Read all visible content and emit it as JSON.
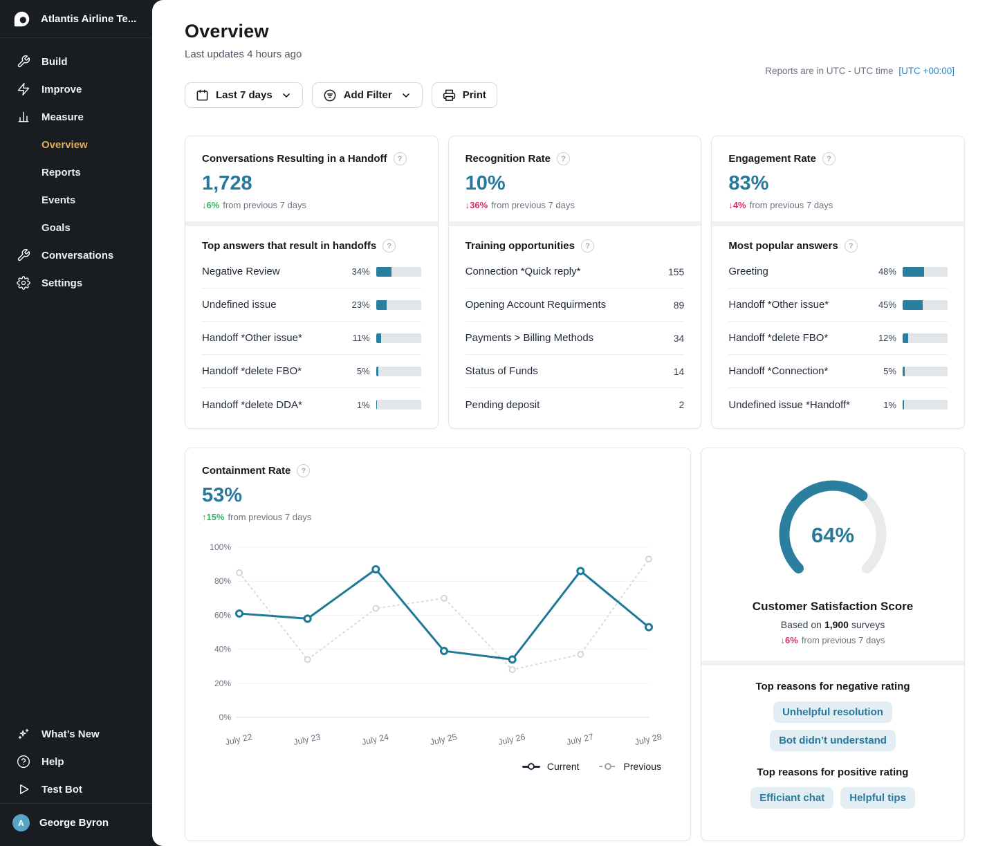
{
  "colors": {
    "accent": "#27789b",
    "bar_fill": "#2b7f9e",
    "positive": "#2fb15f",
    "negative": "#d5305f",
    "active_nav": "#dfae55",
    "link": "#2e86c1"
  },
  "sidebar": {
    "workspace": "Atlantis Airline Te...",
    "nav": [
      {
        "label": "Build",
        "icon": "wrench-icon"
      },
      {
        "label": "Improve",
        "icon": "lightning-icon"
      },
      {
        "label": "Measure",
        "icon": "bar-chart-icon"
      }
    ],
    "measure_children": [
      {
        "label": "Overview",
        "active": true
      },
      {
        "label": "Reports"
      },
      {
        "label": "Events"
      },
      {
        "label": "Goals"
      }
    ],
    "nav2": [
      {
        "label": "Conversations",
        "icon": "conversations-icon"
      },
      {
        "label": "Settings",
        "icon": "gear-icon"
      }
    ],
    "footer_nav": [
      {
        "label": "What’s New",
        "icon": "sparkles-icon"
      },
      {
        "label": "Help",
        "icon": "help-icon"
      },
      {
        "label": "Test Bot",
        "icon": "play-icon"
      }
    ],
    "user": {
      "name": "George Byron",
      "initial": "A"
    }
  },
  "header": {
    "title": "Overview",
    "subtitle": "Last updates 4 hours ago",
    "timezone_text": "Reports are in UTC - UTC time",
    "timezone_link": "[UTC +00:00]",
    "date_range_label": "Last 7 days",
    "add_filter_label": "Add Filter",
    "print_label": "Print"
  },
  "cards": {
    "handoff": {
      "title": "Conversations Resulting in a Handoff",
      "value": "1,728",
      "delta_label": "↓6%",
      "delta_suffix": "from previous 7 days",
      "section_title": "Top answers that result in handoffs",
      "rows": [
        {
          "label": "Negative Review",
          "pct": "34%",
          "value": 34
        },
        {
          "label": "Undefined issue",
          "pct": "23%",
          "value": 23
        },
        {
          "label": "Handoff *Other issue*",
          "pct": "11%",
          "value": 11
        },
        {
          "label": "Handoff *delete FBO*",
          "pct": "5%",
          "value": 5
        },
        {
          "label": "Handoff *delete DDA*",
          "pct": "1%",
          "value": 1
        }
      ]
    },
    "recognition": {
      "title": "Recognition Rate",
      "value": "10%",
      "delta_label": "↓36%",
      "delta_suffix": "from previous 7 days",
      "section_title": "Training opportunities",
      "rows": [
        {
          "label": "Connection *Quick reply*",
          "count": "155"
        },
        {
          "label": "Opening Account Requirments",
          "count": "89"
        },
        {
          "label": "Payments > Billing Methods",
          "count": "34"
        },
        {
          "label": "Status of Funds",
          "count": "14"
        },
        {
          "label": "Pending deposit",
          "count": "2"
        }
      ]
    },
    "engagement": {
      "title": "Engagement Rate",
      "value": "83%",
      "delta_label": "↓4%",
      "delta_suffix": "from previous 7 days",
      "section_title": "Most popular answers",
      "rows": [
        {
          "label": "Greeting",
          "pct": "48%",
          "value": 48
        },
        {
          "label": "Handoff *Other issue*",
          "pct": "45%",
          "value": 45
        },
        {
          "label": "Handoff *delete FBO*",
          "pct": "12%",
          "value": 12
        },
        {
          "label": "Handoff *Connection*",
          "pct": "5%",
          "value": 5
        },
        {
          "label": "Undefined issue *Handoff*",
          "pct": "1%",
          "value": 1
        }
      ]
    },
    "containment": {
      "title": "Containment Rate",
      "value": "53%",
      "delta_label": "↑15%",
      "delta_suffix": "from previous 7 days"
    },
    "csat": {
      "value": 64,
      "value_label": "64%",
      "title": "Customer Satisfaction Score",
      "based_prefix": "Based on",
      "based_bold": "1,900",
      "based_suffix": "surveys",
      "delta_label": "↓6%",
      "delta_suffix": "from previous 7 days",
      "negative_heading": "Top reasons for negative rating",
      "negative_tags": [
        "Unhelpful resolution",
        "Bot didn’t understand"
      ],
      "positive_heading": "Top reasons for positive rating",
      "positive_tags": [
        "Efficiant chat",
        "Helpful tips"
      ]
    }
  },
  "chart_data": {
    "type": "line",
    "title": "Containment Rate",
    "x": [
      "July 22",
      "July 23",
      "July 24",
      "July 25",
      "July 26",
      "July 27",
      "July 28"
    ],
    "series": [
      {
        "name": "Current",
        "values": [
          61,
          58,
          87,
          39,
          34,
          86,
          53
        ]
      },
      {
        "name": "Previous",
        "values": [
          85,
          34,
          64,
          70,
          28,
          37,
          93
        ]
      }
    ],
    "ylim": [
      0,
      100
    ],
    "yticks": [
      0,
      20,
      40,
      60,
      80,
      100
    ],
    "ytick_labels": [
      "0%",
      "20%",
      "40%",
      "60%",
      "80%",
      "100%"
    ],
    "grid": true,
    "legend_position": "bottom-right"
  },
  "gauge_data": {
    "type": "gauge",
    "value": 64,
    "max": 100,
    "sweep_degrees": 270
  }
}
